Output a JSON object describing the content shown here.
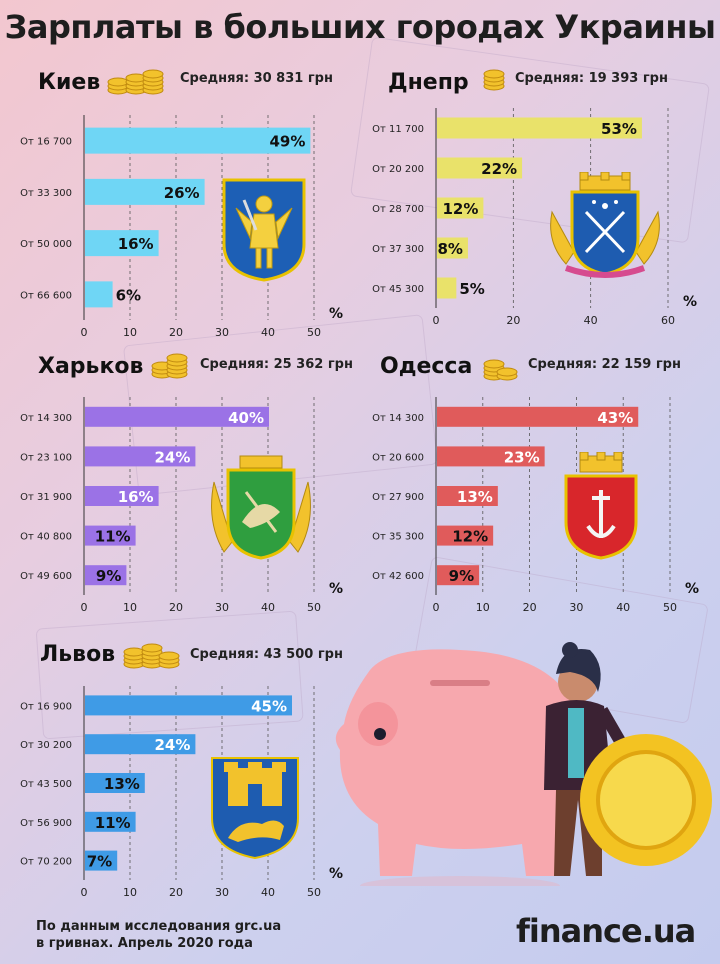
{
  "title": "Зарплаты в больших городах Украины",
  "footer": {
    "source_line1": "По данным исследования grc.ua",
    "source_line2": "в гривнах. Апрель 2020 года",
    "brand": "finance.ua"
  },
  "colors": {
    "kiev": "#6fd6f5",
    "dnepr": "#e9e26a",
    "kharkov": "#9b72e6",
    "odessa": "#e05b5b",
    "lvov": "#3f9be6"
  },
  "panels": {
    "kiev": {
      "city": "Киев",
      "average": "Средняя: 30 831 грн"
    },
    "dnepr": {
      "city": "Днепр",
      "average": "Средняя: 19 393 грн"
    },
    "kharkov": {
      "city": "Харьков",
      "average": "Средняя: 25 362 грн"
    },
    "odessa": {
      "city": "Одесса",
      "average": "Средняя: 22 159 грн"
    },
    "lvov": {
      "city": "Львов",
      "average": "Средняя: 43 500 грн"
    }
  },
  "chart_data": [
    {
      "type": "bar",
      "orientation": "horizontal",
      "id": "kiev",
      "categories": [
        "От 16 700",
        "От 33 300",
        "От 50 000",
        "От 66 600"
      ],
      "values": [
        49,
        26,
        16,
        6
      ],
      "labels": [
        "49%",
        "26%",
        "16%",
        "6%"
      ],
      "xticks": [
        "0",
        "10",
        "20",
        "30",
        "40",
        "50"
      ],
      "xlim": [
        0,
        50
      ],
      "unit": "%",
      "grid": true,
      "color": "#6fd6f5"
    },
    {
      "type": "bar",
      "orientation": "horizontal",
      "id": "dnepr",
      "categories": [
        "От 11 700",
        "От 20 200",
        "От 28 700",
        "От 37 300",
        "От 45 300"
      ],
      "values": [
        53,
        22,
        12,
        8,
        5
      ],
      "labels": [
        "53%",
        "22%",
        "12%",
        "8%",
        "5%"
      ],
      "xticks": [
        "0",
        "20",
        "40",
        "60"
      ],
      "xlim": [
        0,
        60
      ],
      "unit": "%",
      "grid": true,
      "color": "#e9e26a"
    },
    {
      "type": "bar",
      "orientation": "horizontal",
      "id": "kharkov",
      "categories": [
        "От 14 300",
        "От 23 100",
        "От 31 900",
        "От 40 800",
        "От 49 600"
      ],
      "values": [
        40,
        24,
        16,
        11,
        9
      ],
      "labels": [
        "40%",
        "24%",
        "16%",
        "11%",
        "9%"
      ],
      "xticks": [
        "0",
        "10",
        "20",
        "30",
        "40",
        "50"
      ],
      "xlim": [
        0,
        50
      ],
      "unit": "%",
      "grid": true,
      "color": "#9b72e6"
    },
    {
      "type": "bar",
      "orientation": "horizontal",
      "id": "odessa",
      "categories": [
        "От 14 300",
        "От 20 600",
        "От 27 900",
        "От 35 300",
        "От 42 600"
      ],
      "values": [
        43,
        23,
        13,
        12,
        9
      ],
      "labels": [
        "43%",
        "23%",
        "13%",
        "12%",
        "9%"
      ],
      "xticks": [
        "0",
        "10",
        "20",
        "30",
        "40",
        "50"
      ],
      "xlim": [
        0,
        50
      ],
      "unit": "%",
      "grid": true,
      "color": "#e05b5b"
    },
    {
      "type": "bar",
      "orientation": "horizontal",
      "id": "lvov",
      "categories": [
        "От 16 900",
        "От 30 200",
        "От 43 500",
        "От 56 900",
        "От 70 200"
      ],
      "values": [
        45,
        24,
        13,
        11,
        7
      ],
      "labels": [
        "45%",
        "24%",
        "13%",
        "11%",
        "7%"
      ],
      "xticks": [
        "0",
        "10",
        "20",
        "30",
        "40",
        "50"
      ],
      "xlim": [
        0,
        50
      ],
      "unit": "%",
      "grid": true,
      "color": "#3f9be6"
    }
  ]
}
